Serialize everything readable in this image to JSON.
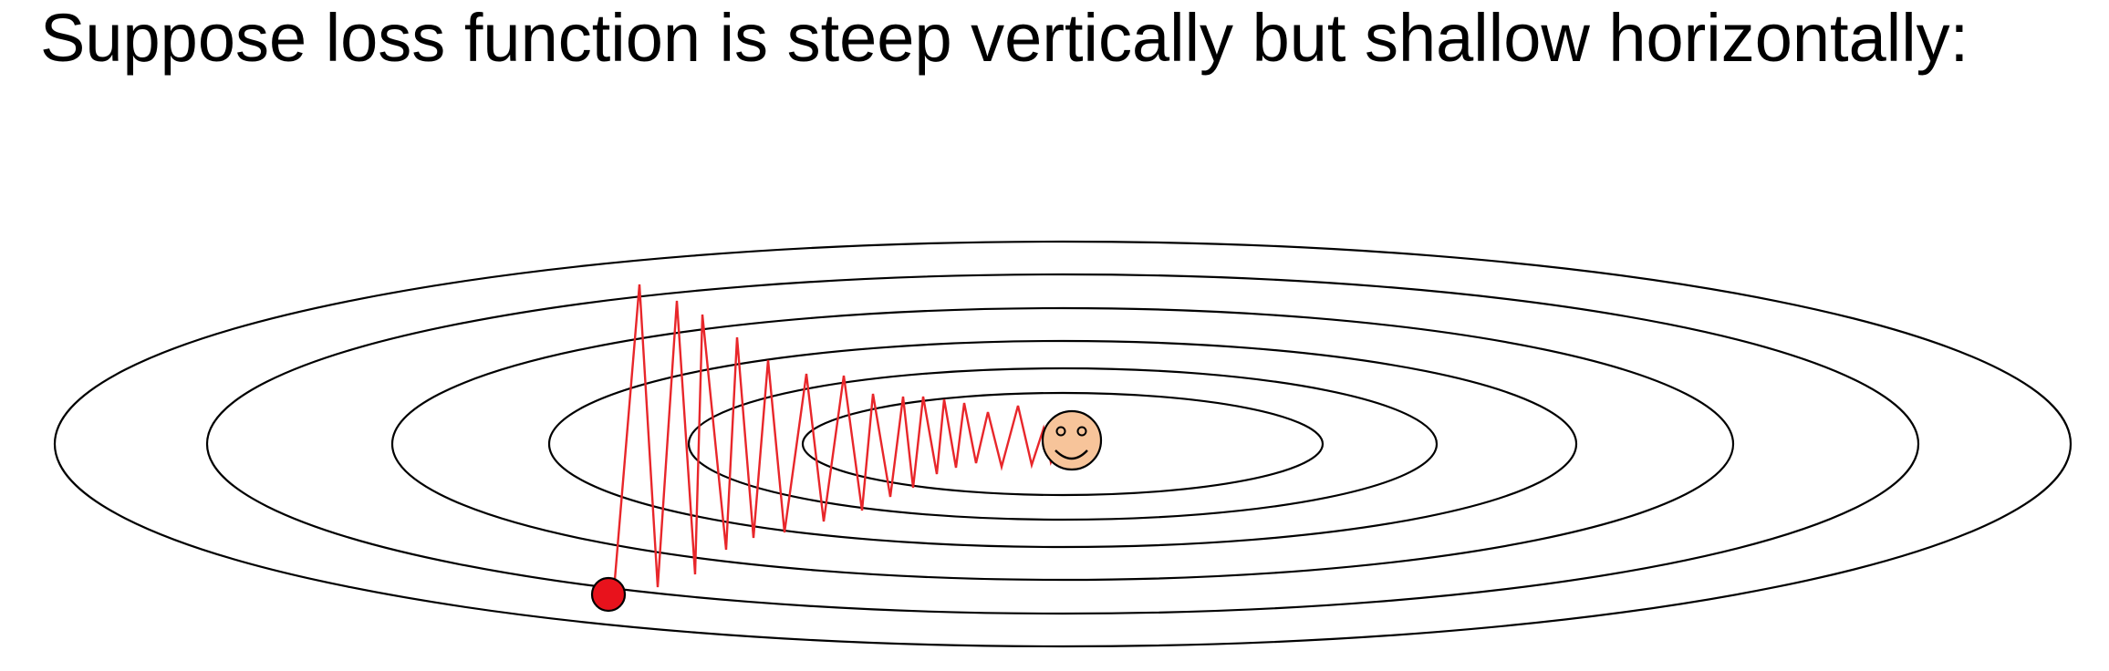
{
  "title": "Suppose loss function is steep vertically but shallow horizontally:",
  "colors": {
    "contour": "#000000",
    "path": "#e8262a",
    "start_point": "#e8121c",
    "smiley_face": "#f7c49a"
  }
}
